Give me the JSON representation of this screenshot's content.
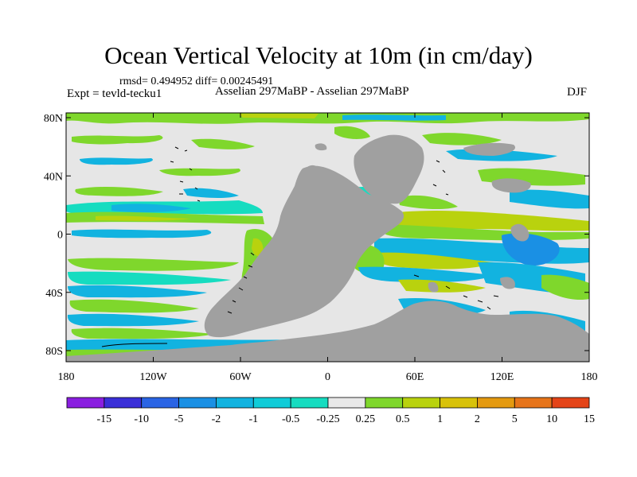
{
  "header": {
    "title": "Ocean Vertical Velocity at 10m (in cm/day)",
    "stats": "rmsd= 0.494952 diff= 0.00245491",
    "expt": "Expt = tevld-tecku1",
    "subtitle": "Asselian 297MaBP - Asselian 297MaBP",
    "season": "DJF"
  },
  "axes": {
    "lat_ticks": [
      "80N",
      "40N",
      "0",
      "40S",
      "80S"
    ],
    "lon_ticks": [
      "180",
      "120W",
      "60W",
      "0",
      "60E",
      "120E",
      "180"
    ]
  },
  "colorbar": {
    "labels": [
      "-15",
      "-10",
      "-5",
      "-2",
      "-1",
      "-0.5",
      "-0.25",
      "0.25",
      "0.5",
      "1",
      "2",
      "5",
      "10",
      "15"
    ],
    "colors": [
      "#8a1fe0",
      "#3a2fd8",
      "#2a64e4",
      "#1a90e4",
      "#12b3e0",
      "#10ccd8",
      "#16dcc0",
      "#e8e8e8",
      "#7fd72c",
      "#b9d20e",
      "#d8c20a",
      "#e49a10",
      "#e6741a",
      "#e44418"
    ]
  },
  "palette": {
    "land": "#a0a0a0",
    "ocean_background": "#e6e6e6"
  }
}
